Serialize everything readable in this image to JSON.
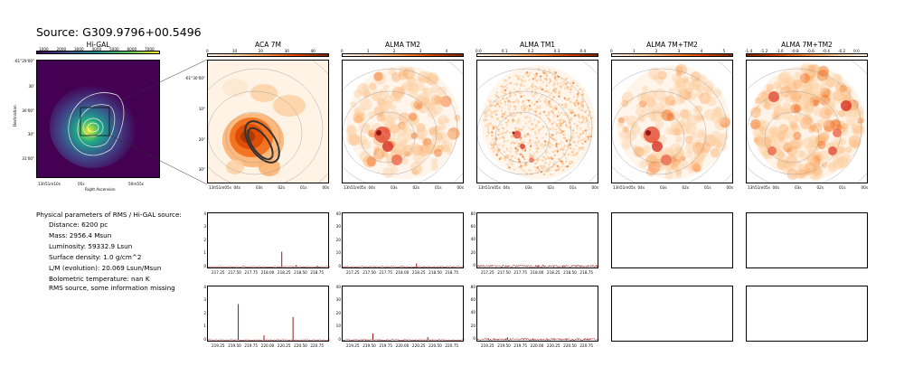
{
  "title": "Source: G309.9796+00.5496",
  "higal": {
    "title": "Hi-GAL",
    "colorbar_ticks": [
      "1000",
      "2000",
      "3000",
      "4000",
      "5000",
      "6000",
      "7000"
    ],
    "y_ticks": [
      "-61°29'00\"",
      "30'",
      "30'00\"",
      "30\"",
      "31'00\""
    ],
    "x_ticks": [
      "13h51m10s",
      "05s",
      "50m55s"
    ],
    "ylabel": "Declination",
    "xlabel": "Right Ascension"
  },
  "panels": [
    {
      "title": "ACA 7M",
      "cbar_ticks": [
        "0",
        "10",
        "20",
        "30",
        "40"
      ],
      "cbar": "reds"
    },
    {
      "title": "ALMA TM2",
      "cbar_ticks": [
        "0",
        "1",
        "2",
        "3",
        "4"
      ],
      "cbar": "reds"
    },
    {
      "title": "ALMA TM1",
      "cbar_ticks": [
        "0.0",
        "0.1",
        "0.2",
        "0.3",
        "0.4"
      ],
      "cbar": "reds"
    },
    {
      "title": "ALMA 7M+TM2",
      "cbar_ticks": [
        "0",
        "1",
        "2",
        "3",
        "4",
        "5"
      ],
      "cbar": "reds"
    },
    {
      "title": "ALMA 7M+TM2",
      "cbar_ticks": [
        "-1.4",
        "-1.2",
        "-1.0",
        "-0.8",
        "-0.6",
        "-0.4",
        "-0.2",
        "0.0"
      ],
      "cbar": "reds_r"
    }
  ],
  "aca_y_ticks": [
    "-61°30'00\"",
    "10\"",
    "20\"",
    "30\""
  ],
  "image_x_ticks": [
    "13h51m05s",
    "04s",
    "03s",
    "02s",
    "01s",
    "00s"
  ],
  "info": {
    "header": "Physical parameters of RMS / Hi-GAL source:",
    "lines": [
      "Distance: 6200 pc",
      "Mass: 2956.4 Msun",
      "Luminosity: 59332.9 Lsun",
      "Surface density: 1.0 g/cm^2",
      "L/M (evolution): 20.069 Lsun/Msun",
      "Bolometric temperature: nan K"
    ],
    "note": "RMS source, some information missing"
  },
  "chart_data": [
    {
      "type": "line",
      "panel": "ACA 7M spectrum (row 1)",
      "x_range": [
        217.1,
        218.95
      ],
      "ylim": [
        -0.2,
        4.1
      ],
      "x_ticks": [
        "217.25",
        "217.50",
        "217.75",
        "218.00",
        "218.25",
        "218.50",
        "218.75"
      ],
      "y_ticks": [
        "0",
        "1",
        "2",
        "3",
        "4"
      ],
      "peaks": [
        {
          "x": 218.22,
          "y": 1.15
        },
        {
          "x": 218.44,
          "y": 0.12
        },
        {
          "x": 218.76,
          "y": 0.08
        }
      ],
      "baseline": 0.0,
      "noise": 0.03
    },
    {
      "type": "line",
      "panel": "ALMA TM2 spectrum (row 1)",
      "x_range": [
        217.1,
        218.95
      ],
      "ylim": [
        -2,
        41
      ],
      "x_ticks": [
        "217.25",
        "217.50",
        "217.75",
        "218.00",
        "218.25",
        "218.50",
        "218.75"
      ],
      "y_ticks": [
        "0",
        "10",
        "20",
        "30",
        "40"
      ],
      "peaks": [
        {
          "x": 218.22,
          "y": 2.5
        }
      ],
      "baseline": 0.0,
      "noise": 0.4
    },
    {
      "type": "line",
      "panel": "ALMA TM1 spectrum (row 1)",
      "x_range": [
        217.1,
        218.95
      ],
      "ylim": [
        -5,
        82
      ],
      "x_ticks": [
        "217.25",
        "217.50",
        "217.75",
        "218.00",
        "218.25",
        "218.50",
        "218.75"
      ],
      "y_ticks": [
        "0",
        "20",
        "40",
        "60",
        "80"
      ],
      "peaks": [],
      "baseline": 0.0,
      "noise": 1.6
    },
    {
      "type": "line",
      "panel": "ACA 7M spectrum (row 2)",
      "x_range": [
        219.1,
        220.95
      ],
      "ylim": [
        -0.2,
        4.1
      ],
      "x_ticks": [
        "219.25",
        "219.50",
        "219.75",
        "220.00",
        "220.25",
        "220.50",
        "220.75"
      ],
      "y_ticks": [
        "0",
        "1",
        "2",
        "3",
        "4"
      ],
      "peaks": [
        {
          "x": 219.56,
          "y": 2.75
        },
        {
          "x": 219.95,
          "y": 0.35
        },
        {
          "x": 220.39,
          "y": 1.75
        }
      ],
      "baseline": 0.0,
      "noise": 0.03
    },
    {
      "type": "line",
      "panel": "ALMA TM2 spectrum (row 2)",
      "x_range": [
        219.1,
        220.95
      ],
      "ylim": [
        -2,
        41
      ],
      "x_ticks": [
        "219.25",
        "219.50",
        "219.75",
        "220.00",
        "220.25",
        "220.50",
        "220.75"
      ],
      "y_ticks": [
        "0",
        "10",
        "20",
        "30",
        "40"
      ],
      "peaks": [
        {
          "x": 219.56,
          "y": 5.0
        },
        {
          "x": 220.39,
          "y": 2.2
        }
      ],
      "baseline": 0.0,
      "noise": 0.4
    },
    {
      "type": "line",
      "panel": "ALMA TM1 spectrum (row 2)",
      "x_range": [
        219.1,
        220.95
      ],
      "ylim": [
        -5,
        82
      ],
      "x_ticks": [
        "219.25",
        "219.50",
        "219.75",
        "220.00",
        "220.25",
        "220.50",
        "220.75"
      ],
      "y_ticks": [
        "0",
        "20",
        "40",
        "60",
        "80"
      ],
      "peaks": [
        {
          "x": 219.56,
          "y": 3
        }
      ],
      "baseline": 0.0,
      "noise": 1.6
    }
  ],
  "colors": {
    "spectrum_line": "#8b0000",
    "viridis": [
      "#440154",
      "#3b528b",
      "#21918c",
      "#5ec962",
      "#fde725"
    ],
    "reds": [
      "#fff5eb",
      "#fdd0a2",
      "#fd8d3c",
      "#d94801",
      "#7f2704"
    ],
    "contour": "#888888"
  }
}
